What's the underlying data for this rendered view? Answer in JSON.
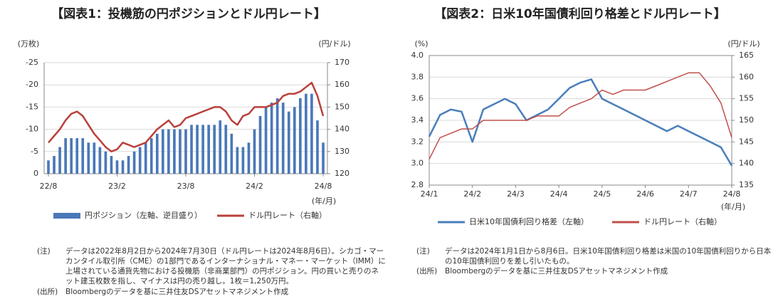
{
  "chart_data": [
    {
      "type": "combo",
      "title": "【図表1：投機筋の円ポジションとドル円レート】",
      "y_unit": "(万枚)",
      "y2_unit": "(円/ドル)",
      "x_unit": "(年/月)",
      "categories": [
        "22/8",
        null,
        null,
        null,
        null,
        null,
        null,
        null,
        null,
        null,
        null,
        null,
        "23/2",
        null,
        null,
        null,
        null,
        null,
        null,
        null,
        null,
        null,
        null,
        null,
        "23/8",
        null,
        null,
        null,
        null,
        null,
        null,
        null,
        null,
        null,
        null,
        null,
        "24/2",
        null,
        null,
        null,
        null,
        null,
        null,
        null,
        null,
        null,
        null,
        null,
        "24/8"
      ],
      "ylim": [
        0,
        -25
      ],
      "yticks": [
        0,
        -5,
        -10,
        -15,
        -20,
        -25
      ],
      "y2lim": [
        120,
        170
      ],
      "y2ticks": [
        120,
        130,
        140,
        150,
        160,
        170
      ],
      "grid": true,
      "series": [
        {
          "name": "円ポジション（左軸、逆目盛り）",
          "kind": "bar",
          "color": "#4a78b8",
          "values": [
            -3,
            -4,
            -6,
            -8,
            -8,
            -8,
            -8,
            -7,
            -7,
            -6,
            -5,
            -4,
            -3,
            -3,
            -4,
            -5,
            -6,
            -7,
            -8,
            -9,
            -10,
            -10,
            -10,
            -10,
            -10,
            -11,
            -11,
            -11,
            -11,
            -11,
            -12,
            -11,
            -9,
            -6,
            -6,
            -7,
            -10,
            -13,
            -15,
            -16,
            -17,
            -16,
            -14,
            -15,
            -17,
            -18,
            -18,
            -12,
            -7
          ]
        },
        {
          "name": "ドル円レート（右軸）",
          "kind": "line",
          "axis": "y2",
          "color": "#b9403c",
          "values": [
            134,
            137,
            140,
            144,
            147,
            148,
            146,
            142,
            138,
            135,
            132,
            130,
            131,
            134,
            133,
            132,
            133,
            134,
            137,
            140,
            142,
            144,
            141,
            142,
            145,
            146,
            147,
            148,
            149,
            150,
            150,
            148,
            144,
            142,
            146,
            147,
            150,
            150,
            150,
            151,
            152,
            155,
            156,
            156,
            157,
            159,
            161,
            155,
            146
          ]
        }
      ],
      "notes": [
        {
          "label": "(注)",
          "text": "データは2022年8月2日から2024年7月30日（ドル円レートは2024年8月6日）。シカゴ・マーカンタイル取引所（CME）の1部門であるインターナショナル・マネー・マーケット（IMM）に上場されている通貨先物における投機筋（非商業部門）の円ポジション。円の買いと売りのネット建玉枚数を指し、マイナスは円の売り越し。1枚＝1,250万円。"
        },
        {
          "label": "(出所)",
          "text": "Bloombergのデータを基に三井住友DSアセットマネジメント作成"
        }
      ]
    },
    {
      "type": "line",
      "title": "【図表2：日米10年国債利回り格差とドル円レート】",
      "y_unit": "(%)",
      "y2_unit": "(円/ドル)",
      "x_unit": "(年/月)",
      "categories": [
        "24/1",
        null,
        null,
        null,
        "24/2",
        null,
        null,
        null,
        "24/3",
        null,
        null,
        null,
        "24/4",
        null,
        null,
        null,
        "24/5",
        null,
        null,
        null,
        "24/6",
        null,
        null,
        null,
        "24/7",
        null,
        null,
        null,
        "24/8"
      ],
      "ylim": [
        2.8,
        4.0
      ],
      "yticks": [
        2.8,
        {
          "value": 3.0,
          "label": "3.0"
        },
        3.2,
        3.4,
        3.6,
        3.8,
        {
          "value": 4.0,
          "label": "4.0"
        }
      ],
      "y2lim": [
        135,
        165
      ],
      "y2ticks": [
        135,
        140,
        145,
        150,
        155,
        160,
        165
      ],
      "grid": true,
      "series": [
        {
          "name": "日米10年国債利回り格差（左軸）",
          "kind": "line",
          "color": "#4a7ebb",
          "values": [
            3.25,
            3.45,
            3.5,
            3.48,
            3.2,
            3.5,
            3.55,
            3.6,
            3.55,
            3.4,
            3.45,
            3.5,
            3.6,
            3.7,
            3.75,
            3.78,
            3.6,
            3.55,
            3.5,
            3.45,
            3.4,
            3.35,
            3.3,
            3.35,
            3.3,
            3.25,
            3.2,
            3.15,
            2.98
          ]
        },
        {
          "name": "ドル円レート（右軸）",
          "kind": "line",
          "axis": "y2",
          "color": "#c0504d",
          "values": [
            141,
            146,
            147,
            148,
            148,
            150,
            150,
            150,
            150,
            150,
            151,
            151,
            151,
            153,
            154,
            155,
            157,
            156,
            157,
            157,
            157,
            158,
            159,
            160,
            161,
            161,
            158,
            154,
            146
          ]
        }
      ],
      "notes": [
        {
          "label": "(注)",
          "text": "データは2024年1月1日から8月6日。日米10年国債利回り格差は米国の10年国債利回りから日本の10年国債利回りを差し引いたもの。"
        },
        {
          "label": "(出所)",
          "text": "Bloombergのデータを基に三井住友DSアセットマネジメント作成"
        }
      ]
    }
  ]
}
